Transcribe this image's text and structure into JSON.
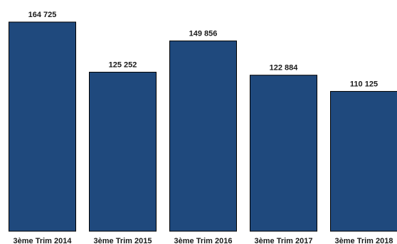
{
  "chart_data": {
    "type": "bar",
    "categories": [
      "3ème Trim 2014",
      "3ème Trim 2015",
      "3ème Trim 2016",
      "3ème Trim 2017",
      "3ème Trim 2018"
    ],
    "values": [
      164725,
      125252,
      149856,
      122884,
      110125
    ],
    "value_labels": [
      "164 725",
      "125 252",
      "149 856",
      "122 884",
      "110 125"
    ],
    "ylim": [
      0,
      164725
    ],
    "grid": false,
    "legend": "none",
    "colors": {
      "bar_fill": "#1f497d",
      "bar_stroke": "#000000",
      "text": "#1a1a1a"
    }
  }
}
